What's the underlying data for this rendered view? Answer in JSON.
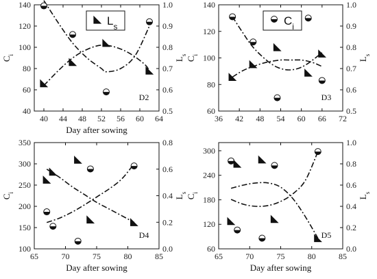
{
  "chart_data": [
    {
      "type": "scatter",
      "panel": "D2",
      "xlabel": "Day after sowing",
      "ylabel_left": "C",
      "ylabel_left_sub": "i",
      "ylabel_right": "L",
      "ylabel_right_sub": "s",
      "xlim": [
        38,
        64
      ],
      "xticks": [
        40,
        44,
        48,
        52,
        56,
        60,
        64
      ],
      "ylim_left": [
        40,
        140
      ],
      "yticks_left": [
        40,
        60,
        80,
        100,
        120,
        140
      ],
      "ylim_right": [
        0.5,
        1.0
      ],
      "yticks_right": [
        "0.5",
        "0.6",
        "0.7",
        "0.8",
        "0.9",
        "1.0"
      ],
      "legend": {
        "marker": "triangle",
        "label": "L",
        "label_sub": "s"
      },
      "series": [
        {
          "axis": "left",
          "marker": "circle",
          "points": [
            [
              40,
              139
            ],
            [
              46,
              112
            ],
            [
              53,
              58
            ],
            [
              62,
              124
            ]
          ],
          "fit": [
            [
              40,
              144
            ],
            [
              43,
              123
            ],
            [
              46,
              104
            ],
            [
              49,
              90
            ],
            [
              52,
              80
            ],
            [
              53,
              77
            ],
            [
              56,
              80
            ],
            [
              59,
              92
            ],
            [
              62,
              120
            ]
          ]
        },
        {
          "axis": "right",
          "marker": "triangle",
          "points": [
            [
              40,
              0.63
            ],
            [
              46,
              0.73
            ],
            [
              53,
              0.82
            ],
            [
              62,
              0.69
            ]
          ],
          "fit": [
            [
              40,
              0.62
            ],
            [
              43,
              0.69
            ],
            [
              46,
              0.75
            ],
            [
              49,
              0.79
            ],
            [
              52,
              0.81
            ],
            [
              55,
              0.8
            ],
            [
              58,
              0.77
            ],
            [
              61,
              0.72
            ],
            [
              62,
              0.69
            ]
          ]
        }
      ]
    },
    {
      "type": "scatter",
      "panel": "D3",
      "xlabel": "",
      "ylabel_left": "C",
      "ylabel_left_sub": "i",
      "ylabel_right": "L",
      "ylabel_right_sub": "s",
      "xlim": [
        36,
        72
      ],
      "xticks": [
        36,
        42,
        48,
        54,
        60,
        66,
        72
      ],
      "ylim_left": [
        60,
        140
      ],
      "yticks_left": [
        60,
        80,
        100,
        120,
        140
      ],
      "ylim_right": [
        0.5,
        1.0
      ],
      "yticks_right": [
        "0.5",
        "0.6",
        "0.7",
        "0.8",
        "0.9",
        "1.0"
      ],
      "legend": {
        "marker": "circle",
        "label": "C",
        "label_sub": "i"
      },
      "series": [
        {
          "axis": "left",
          "marker": "circle",
          "points": [
            [
              40,
              131
            ],
            [
              46,
              112
            ],
            [
              53,
              70
            ],
            [
              62,
              130
            ],
            [
              66,
              83
            ]
          ],
          "fit": [
            [
              40,
              131
            ],
            [
              43,
              119
            ],
            [
              46,
              108
            ],
            [
              50,
              98
            ],
            [
              53,
              93
            ],
            [
              56,
              91
            ],
            [
              59,
              92
            ],
            [
              62,
              96
            ],
            [
              66,
              104
            ]
          ]
        },
        {
          "axis": "right",
          "marker": "triangle",
          "points": [
            [
              40,
              0.66
            ],
            [
              46,
              0.72
            ],
            [
              53,
              0.8
            ],
            [
              62,
              0.68
            ],
            [
              66,
              0.77
            ]
          ],
          "fit": [
            [
              40,
              0.66
            ],
            [
              43,
              0.69
            ],
            [
              46,
              0.71
            ],
            [
              50,
              0.73
            ],
            [
              54,
              0.74
            ],
            [
              57,
              0.74
            ],
            [
              60,
              0.74
            ],
            [
              63,
              0.73
            ],
            [
              66,
              0.71
            ]
          ]
        }
      ]
    },
    {
      "type": "scatter",
      "panel": "D4",
      "xlabel": "Day after sowing",
      "ylabel_left": "C",
      "ylabel_left_sub": "i",
      "ylabel_right": "L",
      "ylabel_right_sub": "s",
      "xlim": [
        65,
        85
      ],
      "xticks": [
        65,
        70,
        75,
        80,
        85
      ],
      "ylim_left": [
        100,
        350
      ],
      "yticks_left": [
        100,
        150,
        200,
        250,
        300,
        350
      ],
      "ylim_right": [
        0.0,
        0.8
      ],
      "yticks_right": [
        "0.0",
        "0.2",
        "0.4",
        "0.6",
        "0.8"
      ],
      "legend": null,
      "series": [
        {
          "axis": "left",
          "marker": "circle",
          "points": [
            [
              67,
              187
            ],
            [
              68,
              153
            ],
            [
              72,
              118
            ],
            [
              74,
              288
            ],
            [
              81,
              295
            ]
          ],
          "fit": [
            [
              67,
              162
            ],
            [
              69,
              172
            ],
            [
              71,
              186
            ],
            [
              73,
              203
            ],
            [
              75,
              222
            ],
            [
              77,
              241
            ],
            [
              79,
              264
            ],
            [
              81,
              300
            ]
          ]
        },
        {
          "axis": "right",
          "marker": "triangle",
          "points": [
            [
              67,
              0.52
            ],
            [
              68,
              0.58
            ],
            [
              72,
              0.67
            ],
            [
              74,
              0.22
            ],
            [
              81,
              0.2
            ]
          ],
          "fit": [
            [
              67,
              0.6
            ],
            [
              69,
              0.54
            ],
            [
              71,
              0.47
            ],
            [
              73,
              0.41
            ],
            [
              75,
              0.35
            ],
            [
              77,
              0.3
            ],
            [
              79,
              0.25
            ],
            [
              81,
              0.2
            ]
          ]
        }
      ]
    },
    {
      "type": "scatter",
      "panel": "D5",
      "xlabel": "Day after sowing",
      "ylabel_left": "C",
      "ylabel_left_sub": "i",
      "ylabel_right": "L",
      "ylabel_right_sub": "s",
      "xlim": [
        65,
        85
      ],
      "xticks": [
        65,
        70,
        75,
        80,
        85
      ],
      "ylim_left": [
        60,
        320
      ],
      "yticks_left": [
        60,
        120,
        180,
        240,
        300
      ],
      "ylim_right": [
        0.0,
        1.0
      ],
      "yticks_right": [
        "0.0",
        "0.2",
        "0.4",
        "0.6",
        "0.8",
        "1.0"
      ],
      "legend": null,
      "series": [
        {
          "axis": "left",
          "marker": "circle",
          "points": [
            [
              67,
              275
            ],
            [
              68,
              106
            ],
            [
              72,
              86
            ],
            [
              74,
              264
            ],
            [
              81,
              298
            ]
          ],
          "fit": [
            [
              67,
              181
            ],
            [
              69,
              169
            ],
            [
              71,
              164
            ],
            [
              73,
              166
            ],
            [
              75,
              176
            ],
            [
              77,
              195
            ],
            [
              79,
              228
            ],
            [
              81,
              298
            ]
          ]
        },
        {
          "axis": "right",
          "marker": "triangle",
          "points": [
            [
              67,
              0.26
            ],
            [
              68,
              0.8
            ],
            [
              72,
              0.84
            ],
            [
              74,
              0.28
            ],
            [
              81,
              0.1
            ]
          ],
          "fit": [
            [
              67,
              0.57
            ],
            [
              69,
              0.6
            ],
            [
              71,
              0.62
            ],
            [
              73,
              0.62
            ],
            [
              75,
              0.58
            ],
            [
              77,
              0.47
            ],
            [
              79,
              0.3
            ],
            [
              81,
              0.1
            ]
          ]
        }
      ]
    }
  ]
}
